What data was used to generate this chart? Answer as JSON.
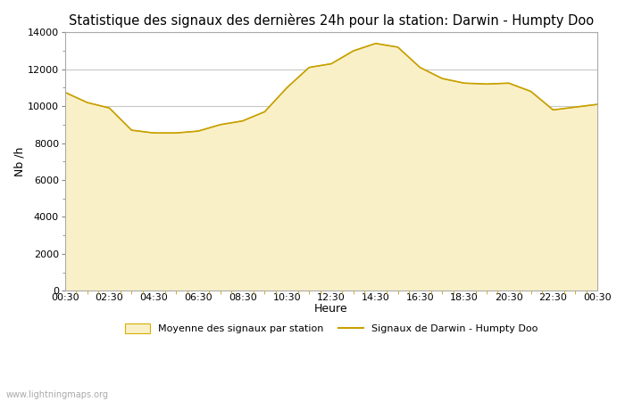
{
  "title": "Statistique des signaux des dernières 24h pour la station: Darwin - Humpty Doo",
  "xlabel": "Heure",
  "ylabel": "Nb /h",
  "watermark": "www.lightningmaps.org",
  "legend_avg": "Moyenne des signaux par station",
  "legend_station": "Signaux de Darwin - Humpty Doo",
  "x_tick_labels": [
    "00:30",
    "02:30",
    "04:30",
    "06:30",
    "08:30",
    "10:30",
    "12:30",
    "14:30",
    "16:30",
    "18:30",
    "20:30",
    "22:30",
    "00:30"
  ],
  "ylim": [
    0,
    14000
  ],
  "yticks": [
    0,
    2000,
    4000,
    6000,
    8000,
    10000,
    12000,
    14000
  ],
  "fill_color": "#FAF0C8",
  "fill_edge_color": "#D4B000",
  "line_color": "#C8A000",
  "background_color": "#FFFFFF",
  "grid_color": "#C8C8C8",
  "title_fontsize": 10.5,
  "avg_x": [
    0,
    1,
    2,
    3,
    4,
    5,
    6,
    7,
    8,
    9,
    10,
    11,
    12,
    13,
    14,
    15,
    16,
    17,
    18,
    19,
    20,
    21,
    22,
    23,
    24
  ],
  "avg_y": [
    10750,
    10200,
    9900,
    8700,
    8550,
    8550,
    8650,
    9000,
    9200,
    9700,
    11000,
    12100,
    12300,
    13000,
    13400,
    13200,
    12100,
    11500,
    11250,
    11200,
    11250,
    10800,
    9800,
    9950,
    10100
  ],
  "station_y": [
    10750,
    10200,
    9900,
    8700,
    8550,
    8550,
    8650,
    9000,
    9200,
    9700,
    11000,
    12100,
    12300,
    13000,
    13400,
    13200,
    12100,
    11500,
    11250,
    11200,
    11250,
    10800,
    9800,
    9950,
    10100
  ],
  "minor_tick_color": "#C8A000",
  "minor_tick_count": 48
}
